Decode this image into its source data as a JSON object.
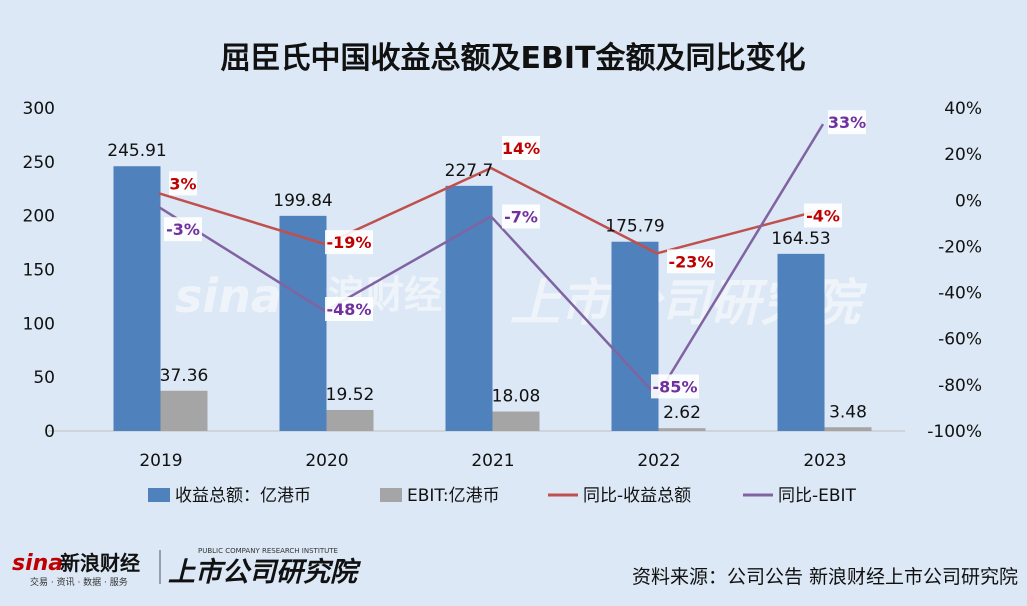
{
  "chart_data": {
    "type": "bar",
    "title": "屈臣氏中国收益总额及EBIT金额及同比变化",
    "categories": [
      "2019",
      "2020",
      "2021",
      "2022",
      "2023"
    ],
    "series": [
      {
        "name": "收益总额：亿港币",
        "kind": "bar",
        "axis": "left",
        "color": "#4f81bd",
        "values": [
          245.91,
          199.84,
          227.7,
          175.79,
          164.53
        ],
        "labels": [
          "245.91",
          "199.84",
          "227.7",
          "175.79",
          "164.53"
        ]
      },
      {
        "name": "EBIT:亿港币",
        "kind": "bar",
        "axis": "left",
        "color": "#a5a5a5",
        "values": [
          37.36,
          19.52,
          18.08,
          2.62,
          3.48
        ],
        "labels": [
          "37.36",
          "19.52",
          "18.08",
          "2.62",
          "3.48"
        ]
      },
      {
        "name": "同比-收益总额",
        "kind": "line",
        "axis": "right",
        "color": "#c0504d",
        "label_color": "#c00000",
        "values": [
          3,
          -19,
          14,
          -23,
          -4
        ],
        "labels": [
          "3%",
          "-19%",
          "14%",
          "-23%",
          "-4%"
        ]
      },
      {
        "name": "同比-EBIT",
        "kind": "line",
        "axis": "right",
        "color": "#8064a2",
        "label_color": "#7030a0",
        "values": [
          -3,
          -48,
          -7,
          -85,
          33
        ],
        "labels": [
          "-3%",
          "-48%",
          "-7%",
          "-85%",
          "33%"
        ]
      }
    ],
    "ylim_left": [
      0,
      300
    ],
    "yticks_left": [
      "0",
      "50",
      "100",
      "150",
      "200",
      "250",
      "300"
    ],
    "ylim_right": [
      -100,
      40
    ],
    "yticks_right": [
      "-100%",
      "-80%",
      "-60%",
      "-40%",
      "-20%",
      "0%",
      "20%",
      "40%"
    ],
    "legend_position": "bottom",
    "grid": false
  },
  "footer": {
    "logo_sina": "sina",
    "logo_cn": "新浪财经",
    "logo_sub": "交易 · 资讯 · 数据 · 服务",
    "logo_research": "上市公司研究院",
    "logo_research_en": "PUBLIC COMPANY RESEARCH INSTITUTE",
    "source": "资料来源：公司公告 新浪财经上市公司研究院"
  }
}
